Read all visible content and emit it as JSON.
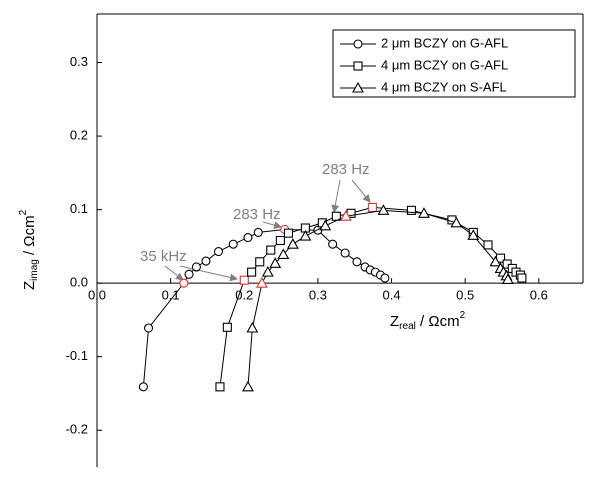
{
  "chart_data": {
    "type": "scatter",
    "x_label": {
      "symbol": "Z",
      "subscript": "real",
      "unit": " / Ωcm",
      "superscript": "2"
    },
    "y_label": {
      "symbol": "Z",
      "subscript": "imag",
      "unit": " / Ωcm",
      "superscript": "2"
    },
    "xlim": [
      0,
      0.66
    ],
    "ylim": [
      -0.25,
      0.366
    ],
    "xticks": [
      {
        "value": 0,
        "label": "0.0"
      },
      0.1,
      0.2,
      0.3,
      0.4,
      0.5,
      0.6
    ],
    "yticks": [
      -0.2,
      -0.1,
      {
        "value": 0,
        "label": "0.0"
      },
      0.1,
      0.2,
      0.3
    ],
    "legend": "upper right",
    "highlight_color": "#e03030",
    "series": [
      {
        "name": "2 μm BCZY on G-AFL",
        "color": "#000000",
        "marker": "circle",
        "highlight": [
          2,
          10
        ],
        "x": [
          0.063,
          0.07,
          0.118,
          0.125,
          0.135,
          0.148,
          0.165,
          0.185,
          0.205,
          0.219,
          0.255,
          0.3,
          0.32,
          0.337,
          0.353,
          0.364,
          0.371,
          0.378,
          0.385,
          0.391
        ],
        "values": [
          -0.141,
          -0.061,
          0.0,
          0.012,
          0.022,
          0.03,
          0.043,
          0.053,
          0.062,
          0.069,
          0.073,
          0.072,
          0.053,
          0.041,
          0.029,
          0.022,
          0.018,
          0.015,
          0.011,
          0.007
        ]
      },
      {
        "name": "4 μm BCZY on G-AFL",
        "color": "#000000",
        "marker": "square",
        "highlight": [
          2,
          12
        ],
        "x": [
          0.167,
          0.177,
          0.2,
          0.21,
          0.221,
          0.236,
          0.249,
          0.26,
          0.283,
          0.306,
          0.325,
          0.345,
          0.374,
          0.427,
          0.482,
          0.511,
          0.531,
          0.548,
          0.557,
          0.564,
          0.569,
          0.575,
          0.577
        ],
        "values": [
          -0.141,
          -0.06,
          0.004,
          0.015,
          0.029,
          0.045,
          0.058,
          0.068,
          0.075,
          0.082,
          0.091,
          0.095,
          0.103,
          0.099,
          0.086,
          0.069,
          0.052,
          0.034,
          0.026,
          0.02,
          0.015,
          0.011,
          0.007
        ]
      },
      {
        "name": "4 μm BCZY on S-AFL",
        "color": "#000000",
        "marker": "triangle",
        "highlight": [
          2,
          9
        ],
        "x": [
          0.205,
          0.211,
          0.224,
          0.232,
          0.242,
          0.253,
          0.266,
          0.283,
          0.31,
          0.338,
          0.389,
          0.444,
          0.488,
          0.511,
          0.541,
          0.548,
          0.552,
          0.556,
          0.558
        ],
        "values": [
          -0.141,
          -0.061,
          0.0,
          0.015,
          0.027,
          0.039,
          0.053,
          0.064,
          0.078,
          0.091,
          0.099,
          0.095,
          0.082,
          0.065,
          0.029,
          0.02,
          0.015,
          0.01,
          0.005
        ]
      }
    ],
    "annotations": [
      "35 kHz",
      "283 Hz",
      "283 Hz"
    ]
  }
}
